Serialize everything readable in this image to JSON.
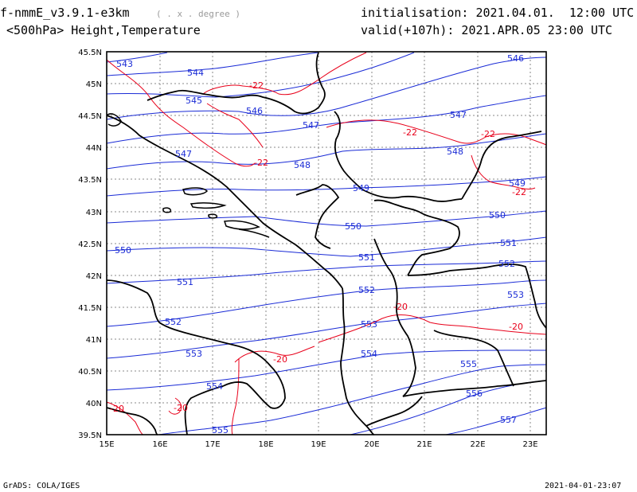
{
  "header": {
    "model": "f-nmmE_v3.9.1-e3km",
    "units": "( . x . degree )",
    "level_field": "<500hPa> Height,Temperature",
    "init": "initialisation: 2021.04.01.  12:00 UTC",
    "valid": "valid(+107h): 2021.APR.05 23:00 UTC"
  },
  "footer": {
    "left": "GrADS: COLA/IGES",
    "right": "2021-04-01-23:07"
  },
  "map": {
    "lat_labels": [
      "45.5N",
      "45N",
      "44.5N",
      "44N",
      "43.5N",
      "43N",
      "42.5N",
      "42N",
      "41.5N",
      "41N",
      "40.5N",
      "40N",
      "39.5N"
    ],
    "lon_labels": [
      "15E",
      "16E",
      "17E",
      "18E",
      "19E",
      "20E",
      "21E",
      "22E",
      "23E"
    ],
    "height_color": "#1a2bd6",
    "temp_color": "#e8001a",
    "height_labels": [
      "543",
      "544",
      "545",
      "546",
      "547",
      "548",
      "549",
      "550",
      "551",
      "552",
      "553",
      "554",
      "555",
      "556",
      "557",
      "546",
      "547",
      "548",
      "549",
      "550",
      "551",
      "552",
      "553",
      "547",
      "551",
      "550",
      "552",
      "553",
      "554",
      "555"
    ],
    "temp_labels": [
      "-22",
      "-22",
      "-22",
      "-22",
      "-22",
      "-20",
      "-20",
      "-20",
      "-20",
      "-20"
    ]
  }
}
